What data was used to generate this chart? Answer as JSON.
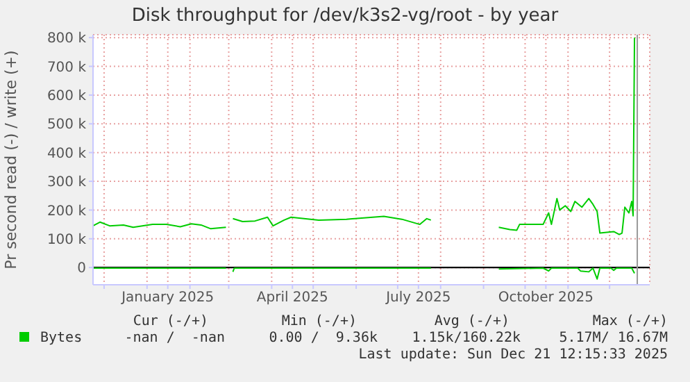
{
  "chart_data": {
    "type": "line",
    "title": "Disk throughput for /dev/k3s2-vg/root - by year",
    "ylabel": "Pr second read (-) / write (+)",
    "xlim": [
      "2024-11-23",
      "2025-12-30"
    ],
    "xticks": [
      {
        "value": "2024-12-01",
        "label": null
      },
      {
        "value": "2025-01-01",
        "label": null
      },
      {
        "value": "2025-01-16",
        "label": "January 2025"
      },
      {
        "value": "2025-02-01",
        "label": null
      },
      {
        "value": "2025-03-01",
        "label": null
      },
      {
        "value": "2025-04-01",
        "label": null
      },
      {
        "value": "2025-04-16",
        "label": "April 2025"
      },
      {
        "value": "2025-05-01",
        "label": null
      },
      {
        "value": "2025-06-01",
        "label": null
      },
      {
        "value": "2025-07-01",
        "label": null
      },
      {
        "value": "2025-07-16",
        "label": "July 2025"
      },
      {
        "value": "2025-08-01",
        "label": null
      },
      {
        "value": "2025-09-01",
        "label": null
      },
      {
        "value": "2025-10-01",
        "label": null
      },
      {
        "value": "2025-10-16",
        "label": "October 2025"
      },
      {
        "value": "2025-11-01",
        "label": null
      },
      {
        "value": "2025-12-01",
        "label": null
      }
    ],
    "ylim": [
      -60000,
      810000
    ],
    "yticks": [
      0,
      {
        "value": 100000,
        "label": "100 k"
      },
      {
        "value": 200000,
        "label": "200 k"
      },
      {
        "value": 300000,
        "label": "300 k"
      },
      {
        "value": 400000,
        "label": "400 k"
      },
      {
        "value": 500000,
        "label": "500 k"
      },
      {
        "value": 600000,
        "label": "600 k"
      },
      {
        "value": 700000,
        "label": "700 k"
      },
      {
        "value": 800000,
        "label": "800 k"
      }
    ],
    "grid": true,
    "legend": "bottom left",
    "line_style": "solid",
    "marker": "none",
    "series": [
      {
        "name": "Bytes",
        "color": "#00cc00",
        "x": [
          "2024-11-23",
          "2024-11-28",
          "2024-12-05",
          "2024-12-15",
          "2024-12-22",
          "2025-01-05",
          "2025-01-15",
          "2025-01-25",
          "2025-02-02",
          "2025-02-09",
          "2025-02-16",
          "2025-02-27",
          "2025-03-02",
          "2025-03-04",
          "2025-03-11",
          "2025-03-20",
          "2025-03-29",
          "2025-04-02",
          "2025-04-10",
          "2025-04-15",
          "2025-05-05",
          "2025-05-25",
          "2025-06-21",
          "2025-07-04",
          "2025-07-17",
          "2025-07-22",
          "2025-07-25",
          "2025-08-20",
          "2025-09-12",
          "2025-09-20",
          "2025-09-25",
          "2025-09-27",
          "2025-10-14",
          "2025-10-18",
          "2025-10-20",
          "2025-10-24",
          "2025-10-26",
          "2025-10-30",
          "2025-11-03",
          "2025-11-06",
          "2025-11-11",
          "2025-11-16",
          "2025-11-19",
          "2025-11-22",
          "2025-11-24",
          "2025-12-04",
          "2025-12-08",
          "2025-12-10",
          "2025-12-12",
          "2025-12-15",
          "2025-12-17",
          "2025-12-18",
          "2025-12-19"
        ],
        "values": [
          145000,
          158000,
          145000,
          148000,
          140000,
          150000,
          150000,
          142000,
          152000,
          148000,
          135000,
          140000,
          null,
          170000,
          160000,
          162000,
          175000,
          145000,
          165000,
          175000,
          165000,
          168000,
          178000,
          168000,
          150000,
          170000,
          165000,
          null,
          140000,
          132000,
          130000,
          150000,
          150000,
          190000,
          150000,
          240000,
          200000,
          215000,
          195000,
          230000,
          210000,
          240000,
          220000,
          195000,
          120000,
          125000,
          115000,
          120000,
          210000,
          190000,
          230000,
          180000,
          800000
        ]
      },
      {
        "color": "#00cc00",
        "x": [
          "2024-11-23",
          "2025-02-27",
          "2025-03-02",
          "2025-03-04",
          "2025-03-05",
          "2025-07-25",
          "2025-08-20",
          "2025-09-12",
          "2025-10-14",
          "2025-10-18",
          "2025-10-20",
          "2025-11-08",
          "2025-11-10",
          "2025-11-16",
          "2025-11-19",
          "2025-11-22",
          "2025-11-24",
          "2025-12-02",
          "2025-12-04",
          "2025-12-06",
          "2025-12-17",
          "2025-12-19"
        ],
        "values": [
          -2000,
          -2000,
          null,
          -15000,
          -2000,
          -2000,
          null,
          -5000,
          -2000,
          -12000,
          -2000,
          -2000,
          -12000,
          -15000,
          -2000,
          -40000,
          -2000,
          -2000,
          -10000,
          -2000,
          -2000,
          -20000
        ]
      }
    ],
    "ref_lines": [
      {
        "axis": "y",
        "value": 0,
        "color": "#000000"
      },
      {
        "axis": "x",
        "value": "2025-12-21",
        "color": "#999999"
      }
    ],
    "annotations": [
      "Cur (-/+)",
      "Min (-/+)",
      "Avg (-/+)",
      "Max (-/+)",
      "-nan /  -nan",
      "0.00 /  9.36k",
      "1.15k/160.22k",
      "5.17M/ 16.67M",
      "Last update: Sun Dec 21 12:15:33 2025"
    ]
  }
}
